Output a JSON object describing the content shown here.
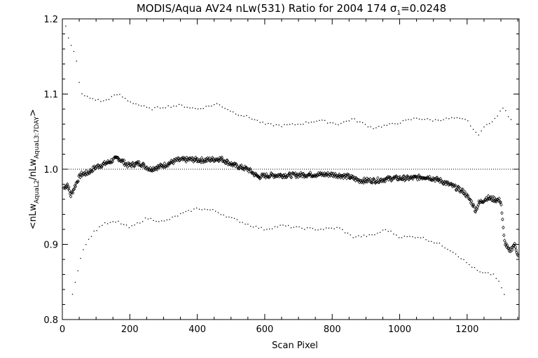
{
  "chart_data": {
    "type": "scatter",
    "title": "MODIS/Aqua AV24 nLw(531) Ratio for 2004 174 σ₁=0.0248",
    "title_parts": {
      "main": "MODIS/Aqua AV24 nLw(531) Ratio for 2004 174 ",
      "sigma": "σ",
      "sigma_sub": "1",
      "sigma_value": "=0.0248"
    },
    "xlabel": "Scan Pixel",
    "ylabel": "<nLw AquaL2 / nLw AquaL3:7DAY>",
    "ylabel_parts": {
      "open": "<nLw",
      "sub1": "AquaL2",
      "mid": "/nLw",
      "sub2": "AquaL3:7DAY",
      "close": ">"
    },
    "xlim": [
      0,
      1354
    ],
    "ylim": [
      0.8,
      1.2
    ],
    "x_ticks": [
      "0",
      "200",
      "400",
      "600",
      "800",
      "1000",
      "1200"
    ],
    "y_ticks": [
      "0.8",
      "0.9",
      "1.0",
      "1.1",
      "1.2"
    ],
    "reference_line": 1.0,
    "grid": false,
    "series": [
      {
        "role": "mean ratio",
        "marker": "diamond",
        "points": [
          [
            5,
            0.975
          ],
          [
            15,
            0.98
          ],
          [
            25,
            0.965
          ],
          [
            35,
            0.975
          ],
          [
            45,
            0.985
          ],
          [
            55,
            0.993
          ],
          [
            75,
            0.995
          ],
          [
            100,
            1.003
          ],
          [
            130,
            1.008
          ],
          [
            165,
            1.015
          ],
          [
            195,
            1.005
          ],
          [
            230,
            1.008
          ],
          [
            260,
            1.0
          ],
          [
            300,
            1.005
          ],
          [
            340,
            1.012
          ],
          [
            380,
            1.013
          ],
          [
            420,
            1.012
          ],
          [
            470,
            1.014
          ],
          [
            510,
            1.005
          ],
          [
            550,
            1.0
          ],
          [
            580,
            0.99
          ],
          [
            620,
            0.992
          ],
          [
            680,
            0.992
          ],
          [
            740,
            0.993
          ],
          [
            800,
            0.993
          ],
          [
            850,
            0.99
          ],
          [
            880,
            0.985
          ],
          [
            930,
            0.985
          ],
          [
            980,
            0.988
          ],
          [
            1030,
            0.988
          ],
          [
            1080,
            0.99
          ],
          [
            1120,
            0.985
          ],
          [
            1160,
            0.977
          ],
          [
            1190,
            0.97
          ],
          [
            1215,
            0.955
          ],
          [
            1225,
            0.945
          ],
          [
            1235,
            0.955
          ],
          [
            1260,
            0.962
          ],
          [
            1280,
            0.96
          ],
          [
            1300,
            0.958
          ],
          [
            1310,
            0.905
          ],
          [
            1325,
            0.89
          ],
          [
            1340,
            0.9
          ],
          [
            1352,
            0.885
          ]
        ]
      },
      {
        "role": "upper bound",
        "marker": "dot",
        "points": [
          [
            10,
            1.19
          ],
          [
            20,
            1.17
          ],
          [
            40,
            1.15
          ],
          [
            55,
            1.1
          ],
          [
            80,
            1.095
          ],
          [
            120,
            1.09
          ],
          [
            165,
            1.1
          ],
          [
            200,
            1.09
          ],
          [
            260,
            1.08
          ],
          [
            300,
            1.083
          ],
          [
            350,
            1.085
          ],
          [
            400,
            1.08
          ],
          [
            460,
            1.087
          ],
          [
            510,
            1.075
          ],
          [
            560,
            1.068
          ],
          [
            600,
            1.06
          ],
          [
            650,
            1.058
          ],
          [
            700,
            1.06
          ],
          [
            760,
            1.065
          ],
          [
            820,
            1.06
          ],
          [
            860,
            1.067
          ],
          [
            920,
            1.055
          ],
          [
            980,
            1.06
          ],
          [
            1050,
            1.068
          ],
          [
            1100,
            1.065
          ],
          [
            1160,
            1.068
          ],
          [
            1200,
            1.065
          ],
          [
            1230,
            1.045
          ],
          [
            1260,
            1.06
          ],
          [
            1290,
            1.07
          ],
          [
            1305,
            1.083
          ],
          [
            1330,
            1.065
          ]
        ]
      },
      {
        "role": "lower bound",
        "marker": "dot",
        "points": [
          [
            30,
            0.835
          ],
          [
            60,
            0.893
          ],
          [
            90,
            0.915
          ],
          [
            120,
            0.927
          ],
          [
            165,
            0.93
          ],
          [
            200,
            0.922
          ],
          [
            250,
            0.935
          ],
          [
            300,
            0.93
          ],
          [
            350,
            0.94
          ],
          [
            400,
            0.948
          ],
          [
            450,
            0.945
          ],
          [
            500,
            0.935
          ],
          [
            560,
            0.925
          ],
          [
            600,
            0.92
          ],
          [
            650,
            0.925
          ],
          [
            700,
            0.922
          ],
          [
            760,
            0.92
          ],
          [
            820,
            0.922
          ],
          [
            860,
            0.91
          ],
          [
            920,
            0.912
          ],
          [
            960,
            0.92
          ],
          [
            1000,
            0.91
          ],
          [
            1060,
            0.91
          ],
          [
            1120,
            0.9
          ],
          [
            1160,
            0.89
          ],
          [
            1200,
            0.875
          ],
          [
            1240,
            0.862
          ],
          [
            1280,
            0.86
          ],
          [
            1300,
            0.845
          ],
          [
            1310,
            0.832
          ]
        ]
      }
    ]
  }
}
